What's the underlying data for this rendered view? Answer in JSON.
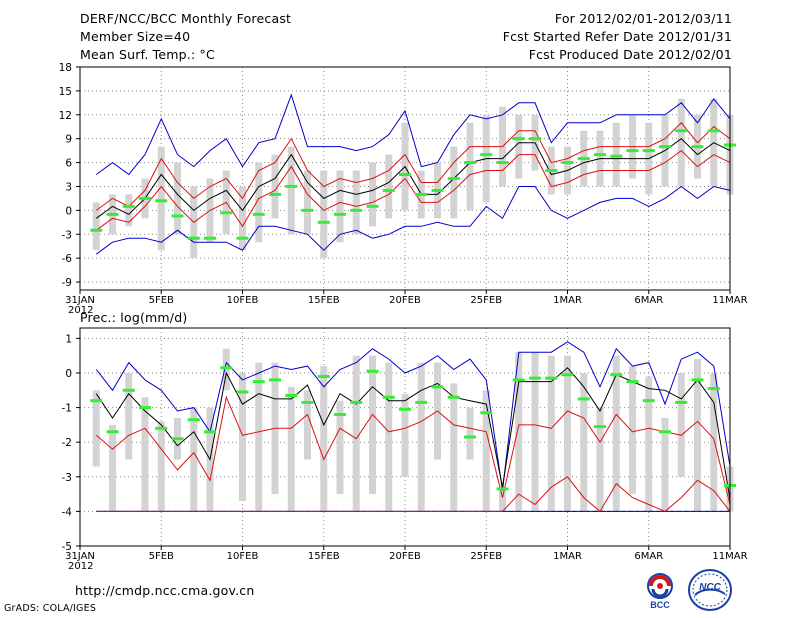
{
  "header": {
    "title": "DERF/NCC/BCC Monthly Forecast",
    "member_size": "Member Size=40",
    "variable": "Mean Surf. Temp.: °C",
    "period": "For 2012/02/01-2012/03/11",
    "started": "Fcst Started Refer Date 2012/01/31",
    "produced": "Fcst Produced Date 2012/02/01"
  },
  "footer": {
    "url": "http://cmdp.ncc.cma.gov.cn",
    "credit": "GrADS: COLA/IGES",
    "logo_bcc": "BCC",
    "logo_ncc": "NCC"
  },
  "colors": {
    "bar": "#d3d3d3",
    "median": "#33ee33",
    "mean": "#000000",
    "inner": "#dd1111",
    "outer": "#0000cc",
    "dash": "#1133dd",
    "grid": "#888888"
  },
  "chart_data": [
    {
      "type": "ensemble-box",
      "title": "Mean Surf. Temp.: °C",
      "ylabel": "°C",
      "ylim": [
        -10,
        18
      ],
      "yticks": [
        -9,
        -6,
        -3,
        0,
        3,
        6,
        9,
        12,
        15,
        18
      ],
      "xticks": [
        {
          "day": 0,
          "label": "31JAN",
          "sub": "2012"
        },
        {
          "day": 5,
          "label": "5FEB"
        },
        {
          "day": 10,
          "label": "10FEB"
        },
        {
          "day": 15,
          "label": "15FEB"
        },
        {
          "day": 20,
          "label": "20FEB"
        },
        {
          "day": 25,
          "label": "25FEB"
        },
        {
          "day": 30,
          "label": "1MAR"
        },
        {
          "day": 35,
          "label": "6MAR"
        },
        {
          "day": 40,
          "label": "11MAR"
        }
      ],
      "days": [
        1,
        2,
        3,
        4,
        5,
        6,
        7,
        8,
        9,
        10,
        11,
        12,
        13,
        14,
        15,
        16,
        17,
        18,
        19,
        20,
        21,
        22,
        23,
        24,
        25,
        26,
        27,
        28,
        29,
        30,
        31,
        32,
        33,
        34,
        35,
        36,
        37,
        38,
        39,
        40
      ],
      "bar_low": [
        -5,
        -3,
        -2,
        -1,
        -5,
        -3,
        -6,
        -4,
        -3,
        -5,
        -4,
        -1,
        -3,
        -3,
        -6,
        -4,
        -3,
        -2,
        -1,
        0,
        -1,
        -1,
        -1,
        0,
        1,
        3,
        4,
        5,
        2,
        2,
        3,
        3,
        3,
        4,
        2,
        3,
        3,
        4,
        3,
        2
      ],
      "bar_high": [
        1,
        2,
        2,
        4,
        8,
        6,
        3,
        4,
        5,
        3,
        6,
        7,
        8,
        5,
        5,
        5,
        5,
        6,
        7,
        11,
        5,
        6,
        8,
        11,
        12,
        13,
        12,
        12,
        8,
        8,
        10,
        10,
        11,
        12,
        11,
        12,
        14,
        12,
        14,
        12
      ],
      "median": [
        -2.5,
        -0.5,
        0.5,
        1.5,
        1.2,
        -0.7,
        -3.5,
        -3.5,
        -0.3,
        -3.5,
        -0.5,
        2,
        3,
        0,
        -1.5,
        -0.5,
        0,
        0.5,
        2.5,
        4.5,
        2,
        2.5,
        4,
        6,
        7,
        6,
        9,
        9,
        5,
        6,
        6.5,
        7,
        6.8,
        7.5,
        7.5,
        8,
        10,
        8,
        10,
        8.2
      ],
      "mean": [
        -1.0,
        0.5,
        -0.5,
        1.5,
        4.5,
        2.0,
        0,
        1.5,
        2.5,
        0,
        3,
        4,
        7,
        3.5,
        1.5,
        2.5,
        2,
        2.5,
        3.5,
        5.5,
        2,
        2,
        4,
        6,
        6.5,
        6.5,
        8.5,
        8.5,
        4.5,
        5,
        6,
        6.5,
        6.5,
        6.5,
        6.5,
        7.5,
        9,
        7,
        8.5,
        7.5
      ],
      "inner_high": [
        0,
        1.5,
        0.5,
        2.5,
        6.5,
        3.5,
        1.5,
        3,
        4,
        1.5,
        5,
        6,
        9,
        5,
        3,
        4,
        3.5,
        4,
        5,
        7,
        3.5,
        3.5,
        6,
        8,
        8,
        8,
        10,
        10,
        6,
        6.5,
        7.5,
        8,
        8,
        8,
        8,
        9,
        11,
        8.5,
        10.5,
        9
      ],
      "inner_low": [
        -2.5,
        -1,
        -1.5,
        0.5,
        3,
        0.5,
        -1.5,
        0,
        1,
        -2,
        1.5,
        2.5,
        5.5,
        2,
        0,
        1,
        0.5,
        1,
        2,
        4,
        1,
        1,
        2.5,
        4.5,
        5,
        5,
        7,
        7,
        3,
        3.5,
        4.5,
        5,
        5,
        5,
        5,
        6,
        7.5,
        5.5,
        7,
        6
      ],
      "outer_high": [
        4.5,
        6,
        4.5,
        7,
        11.5,
        7,
        5.5,
        7.5,
        9,
        5.5,
        8.5,
        9,
        14.5,
        8,
        8,
        8,
        7.5,
        8,
        9.5,
        12.5,
        5.5,
        6,
        9.5,
        12,
        11.5,
        12,
        13.5,
        13.5,
        8.5,
        11,
        11,
        11,
        12,
        12,
        12,
        12,
        13.5,
        11,
        14,
        11.5
      ],
      "outer_low": [
        -5.5,
        -4,
        -3.5,
        -3.5,
        -4,
        -2.5,
        -4,
        -4,
        -4,
        -5,
        -2,
        -2,
        -2.5,
        -3,
        -5,
        -3,
        -2.5,
        -3.5,
        -3,
        -2,
        -2,
        -1.5,
        -2,
        -2,
        0.5,
        -1,
        3,
        3,
        0,
        -1,
        0,
        1,
        1.5,
        1.5,
        0.5,
        1.5,
        3,
        1.5,
        3,
        2.5
      ]
    },
    {
      "type": "ensemble-box",
      "title": "Prec.: log(mm/d)",
      "ylabel": "log(mm/d)",
      "ylim": [
        -5,
        1.3
      ],
      "yticks": [
        -5,
        -4,
        -3,
        -2,
        -1,
        0,
        1
      ],
      "xticks": [
        {
          "day": 0,
          "label": "31JAN",
          "sub": "2012"
        },
        {
          "day": 5,
          "label": "5FEB"
        },
        {
          "day": 10,
          "label": "10FEB"
        },
        {
          "day": 15,
          "label": "15FEB"
        },
        {
          "day": 20,
          "label": "20FEB"
        },
        {
          "day": 25,
          "label": "25FEB"
        },
        {
          "day": 30,
          "label": "1MAR"
        },
        {
          "day": 35,
          "label": "6MAR"
        },
        {
          "day": 40,
          "label": "11MAR"
        }
      ],
      "floor_line": -4,
      "days": [
        1,
        2,
        3,
        4,
        5,
        6,
        7,
        8,
        9,
        10,
        11,
        12,
        13,
        14,
        15,
        16,
        17,
        18,
        19,
        20,
        21,
        22,
        23,
        24,
        25,
        26,
        27,
        28,
        29,
        30,
        31,
        32,
        33,
        34,
        35,
        36,
        37,
        38,
        39,
        40
      ],
      "bar_low": [
        -2.7,
        -4,
        -2.5,
        -4,
        -4,
        -2.5,
        -4,
        -4,
        -0.5,
        -3.7,
        -4,
        -3.5,
        -4,
        -2.5,
        -4,
        -3.5,
        -4,
        -3.5,
        -4,
        -3,
        -4,
        -2.5,
        -4,
        -2.5,
        -4,
        -4,
        -4,
        -4,
        -4,
        -4,
        -4,
        -4,
        -4,
        -3.5,
        -4,
        -4,
        -3,
        -4,
        -4,
        -4
      ],
      "bar_high": [
        -0.5,
        -1.5,
        0,
        -0.7,
        -1.4,
        -1.3,
        -1,
        -1,
        0.7,
        0,
        0.3,
        0.3,
        -0.4,
        -0.5,
        0.2,
        -0.8,
        0.5,
        0.5,
        0.3,
        -0.6,
        0.3,
        0.3,
        -0.3,
        -1,
        -0.5,
        -3.3,
        0.6,
        0.6,
        0.5,
        0.5,
        0,
        -1,
        0.5,
        0.2,
        -0.1,
        -1.3,
        0,
        0.4,
        0,
        -2.7
      ],
      "median": [
        -0.8,
        -1.7,
        -0.5,
        -1.0,
        -1.6,
        -1.9,
        -1.35,
        -1.7,
        0.15,
        -0.55,
        -0.25,
        -0.2,
        -0.65,
        -0.85,
        -0.1,
        -1.2,
        -0.85,
        0.05,
        -0.7,
        -1.05,
        -0.85,
        -0.4,
        -0.7,
        -1.85,
        -1.15,
        -3.35,
        -0.2,
        -0.15,
        -0.15,
        -0.05,
        -0.75,
        -1.55,
        -0.05,
        -0.25,
        -0.8,
        -1.7,
        -0.85,
        -0.2,
        -0.45,
        -3.25
      ],
      "mean": [
        -0.6,
        -1.3,
        -0.6,
        -1.1,
        -1.5,
        -2.1,
        -1.7,
        -2.5,
        0,
        -0.9,
        -0.6,
        -0.75,
        -0.75,
        -0.35,
        -1.5,
        -0.6,
        -0.9,
        -0.4,
        -0.8,
        -0.8,
        -0.5,
        -0.3,
        -0.7,
        -0.8,
        -0.9,
        -3.3,
        -0.25,
        -0.25,
        -0.25,
        0.15,
        -0.4,
        -1.1,
        -0.05,
        -0.25,
        -0.45,
        -0.5,
        -0.75,
        -0.2,
        -0.85,
        -3.65
      ],
      "inner_high": [
        -1.8,
        -2.2,
        -1.8,
        -1.6,
        -2.2,
        -2.8,
        -2.3,
        -3.1,
        -0.7,
        -1.8,
        -1.7,
        -1.6,
        -1.6,
        -1.2,
        -2.5,
        -1.6,
        -1.9,
        -1.2,
        -1.7,
        -1.6,
        -1.4,
        -1.1,
        -1.5,
        -1.6,
        -1.7,
        -3.6,
        -1.5,
        -1.5,
        -1.6,
        -1.1,
        -1.3,
        -2,
        -1.2,
        -1.7,
        -1.6,
        -1.7,
        -1.8,
        -1.4,
        -1.9,
        -3.8
      ],
      "inner_low": [
        -4,
        -4,
        -4,
        -4,
        -4,
        -4,
        -4,
        -4,
        -4,
        -4,
        -4,
        -4,
        -4,
        -4,
        -4,
        -4,
        -4,
        -4,
        -4,
        -4,
        -4,
        -4,
        -4,
        -4,
        -4,
        -4,
        -3.5,
        -3.8,
        -3.3,
        -3,
        -3.6,
        -4,
        -3.2,
        -3.6,
        -3.8,
        -4,
        -3.6,
        -3.1,
        -3.4,
        -4
      ],
      "outer_high": [
        0.1,
        -0.5,
        0.3,
        -0.2,
        -0.5,
        -1.1,
        -1,
        -1.7,
        0.3,
        -0.2,
        0,
        0.2,
        0.1,
        0.2,
        -0.4,
        0.1,
        0.3,
        0.7,
        0.4,
        0,
        0.2,
        0.5,
        0.1,
        0.4,
        -0.2,
        -3.4,
        0.6,
        0.6,
        0.6,
        0.9,
        0.6,
        -0.4,
        0.7,
        0.2,
        0.3,
        -0.9,
        0.4,
        0.6,
        0.2,
        -2.7
      ],
      "outer_low": [
        -4,
        -4,
        -4,
        -4,
        -4,
        -4,
        -4,
        -4,
        -4,
        -4,
        -4,
        -4,
        -4,
        -4,
        -4,
        -4,
        -4,
        -4,
        -4,
        -4,
        -4,
        -4,
        -4,
        -4,
        -4,
        -4,
        -4,
        -4,
        -4,
        -4,
        -4,
        -4,
        -4,
        -4,
        -4,
        -4,
        -4,
        -4,
        -4,
        -4
      ]
    }
  ]
}
